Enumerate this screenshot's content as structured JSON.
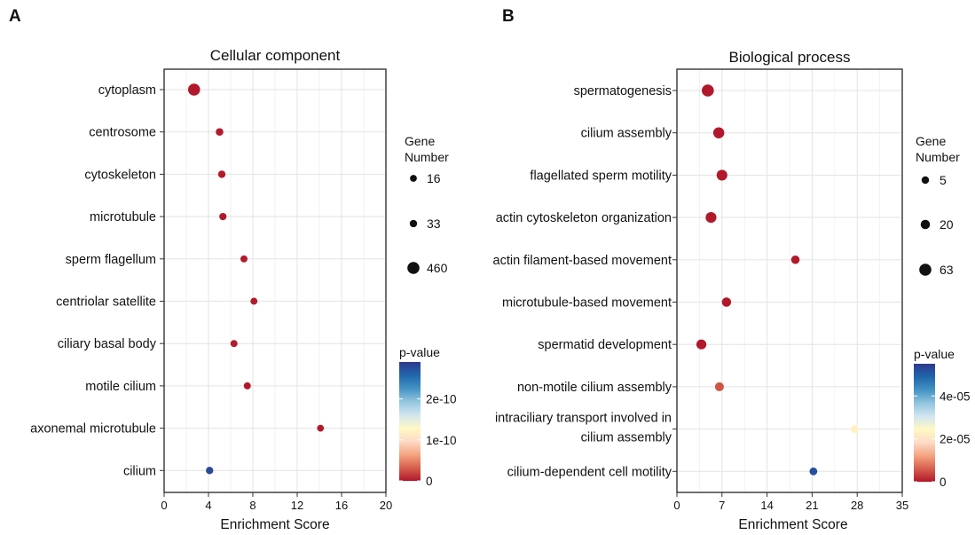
{
  "panels": [
    {
      "letter": "A"
    },
    {
      "letter": "B"
    }
  ],
  "chart_data": [
    {
      "type": "scatter",
      "title": "Cellular component",
      "xlabel": "Enrichment Score",
      "ylabel": "",
      "xlim": [
        0,
        20
      ],
      "xticks": [
        0,
        4,
        8,
        12,
        16,
        20
      ],
      "grid": true,
      "categories": [
        {
          "label": "cytoplasm",
          "x": 2.7,
          "genes": 460,
          "p": 0.0,
          "highlight": false
        },
        {
          "label": "centrosome",
          "x": 5.0,
          "genes": 40,
          "p": 1e-12,
          "highlight": false
        },
        {
          "label": "cytoskeleton",
          "x": 5.2,
          "genes": 35,
          "p": 1e-12,
          "highlight": false
        },
        {
          "label": "microtubule",
          "x": 5.3,
          "genes": 30,
          "p": 1e-12,
          "highlight": false
        },
        {
          "label": "sperm flagellum",
          "x": 7.2,
          "genes": 22,
          "p": 1e-12,
          "highlight": true
        },
        {
          "label": "centriolar satellite",
          "x": 8.1,
          "genes": 20,
          "p": 1e-12,
          "highlight": false
        },
        {
          "label": "ciliary basal body",
          "x": 6.3,
          "genes": 22,
          "p": 1e-12,
          "highlight": false
        },
        {
          "label": "motile cilium",
          "x": 7.5,
          "genes": 22,
          "p": 1e-12,
          "highlight": false
        },
        {
          "label": "axonemal microtubule",
          "x": 14.1,
          "genes": 16,
          "p": 1e-12,
          "highlight": false
        },
        {
          "label": "cilium",
          "x": 4.1,
          "genes": 33,
          "p": 2.8e-10,
          "highlight": false
        }
      ],
      "size_legend": {
        "title": [
          "Gene",
          "Number"
        ],
        "entries": [
          {
            "value": 16,
            "label": "16"
          },
          {
            "value": 33,
            "label": "33"
          },
          {
            "value": 460,
            "label": "460"
          }
        ]
      },
      "color_legend": {
        "title": "p-value",
        "min": 0,
        "max": 2.9e-10,
        "ticks": [
          {
            "value": 2e-10,
            "label": "2e-10"
          },
          {
            "value": 1e-10,
            "label": "1e-10"
          },
          {
            "value": 0,
            "label": "0"
          }
        ]
      }
    },
    {
      "type": "scatter",
      "title": "Biological process",
      "xlabel": "Enrichment Score",
      "ylabel": "",
      "xlim": [
        0,
        35
      ],
      "xticks": [
        0,
        7,
        14,
        21,
        28,
        35
      ],
      "grid": true,
      "categories": [
        {
          "label": "spermatogenesis",
          "x": 4.8,
          "genes": 63,
          "p": 0.0,
          "highlight": false
        },
        {
          "label": "cilium assembly",
          "x": 6.5,
          "genes": 45,
          "p": 0.0,
          "highlight": false
        },
        {
          "label": "flagellated sperm motility",
          "x": 7.0,
          "genes": 40,
          "p": 0.0,
          "highlight": true
        },
        {
          "label": "actin cytoskeleton organization",
          "x": 5.3,
          "genes": 40,
          "p": 0.0,
          "highlight": false
        },
        {
          "label": "actin filament-based movement",
          "x": 18.4,
          "genes": 12,
          "p": 0.0,
          "highlight": false
        },
        {
          "label": "microtubule-based movement",
          "x": 7.7,
          "genes": 20,
          "p": 0.0,
          "highlight": false
        },
        {
          "label": "spermatid development",
          "x": 3.8,
          "genes": 28,
          "p": 0.0,
          "highlight": false
        },
        {
          "label": "non-motile cilium assembly",
          "x": 6.6,
          "genes": 16,
          "p": 5e-06,
          "highlight": false
        },
        {
          "label": "intraciliary transport involved in cilium assembly",
          "lines": [
            "intraciliary transport involved in",
            "cilium assembly"
          ],
          "x": 27.6,
          "genes": 8,
          "p": 2.3e-05,
          "highlight": false
        },
        {
          "label": "cilium-dependent cell motility",
          "x": 21.2,
          "genes": 7,
          "p": 5.2e-05,
          "highlight": true
        }
      ],
      "size_legend": {
        "title": [
          "Gene",
          "Number"
        ],
        "entries": [
          {
            "value": 5,
            "label": "5"
          },
          {
            "value": 20,
            "label": "20"
          },
          {
            "value": 63,
            "label": "63"
          }
        ]
      },
      "color_legend": {
        "title": "p-value",
        "min": 0,
        "max": 5.5e-05,
        "ticks": [
          {
            "value": 4e-05,
            "label": "4e-05"
          },
          {
            "value": 2e-05,
            "label": "2e-05"
          },
          {
            "value": 0,
            "label": "0"
          }
        ]
      }
    }
  ],
  "colors": {
    "scale": [
      "#b2182b",
      "#d6604d",
      "#f4a582",
      "#fddbc7",
      "#fef9c4",
      "#d1e5f0",
      "#92c5de",
      "#4393c3",
      "#2166ac",
      "#2d3a8c"
    ],
    "highlight_label": "#e41a1c",
    "axis": "#333333",
    "grid": "#e3e3e3"
  }
}
